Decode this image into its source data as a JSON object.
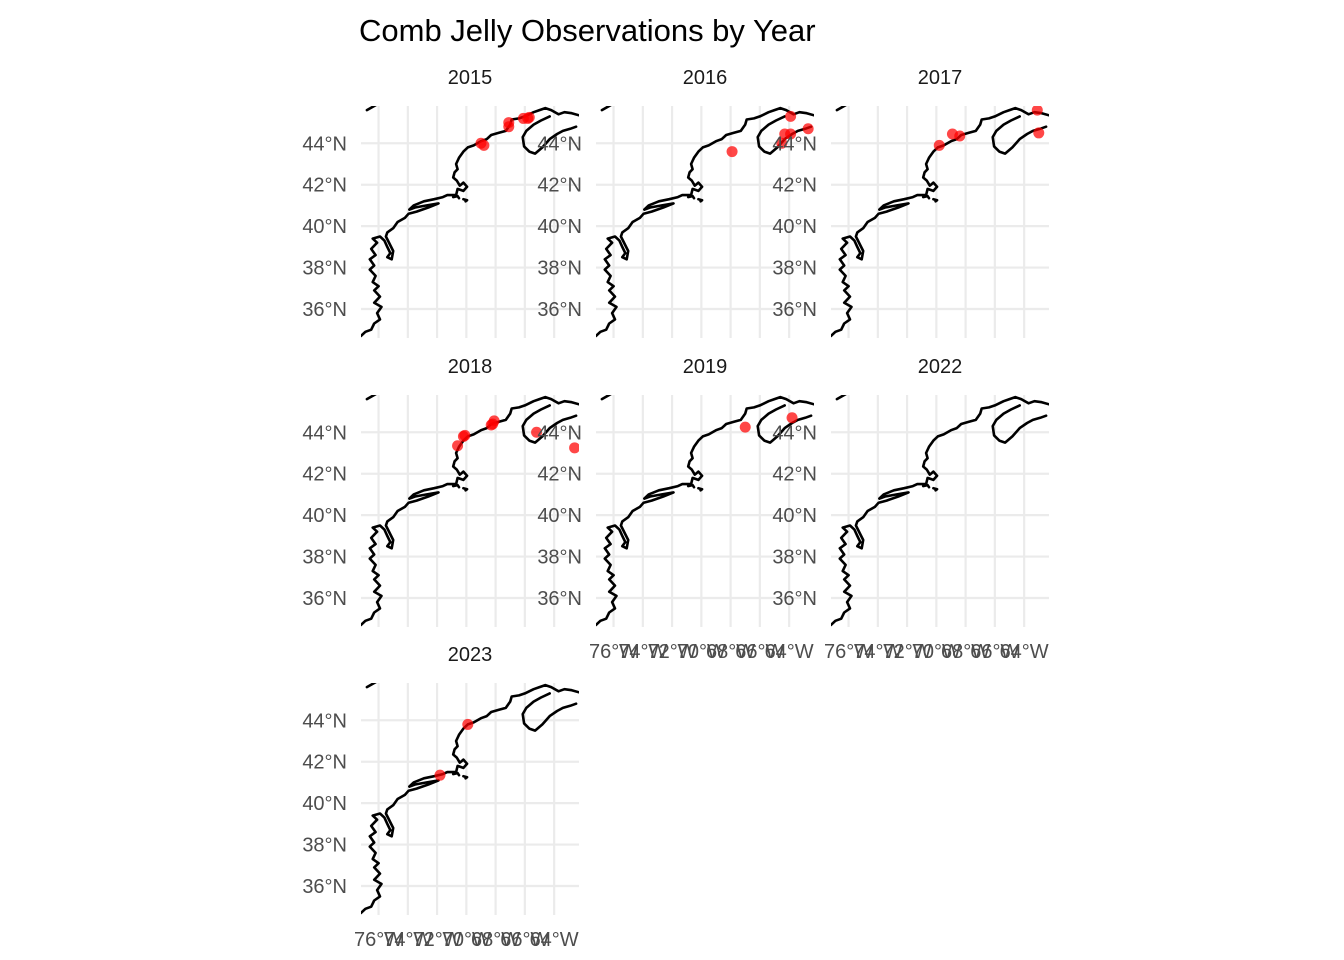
{
  "figure": {
    "title": "Comb Jelly Observations by Year"
  },
  "chart_data": {
    "type": "scatter",
    "title": "Comb Jelly Observations by Year",
    "xlabel": "",
    "ylabel": "",
    "xlim": [
      -77.2,
      -62.3
    ],
    "ylim": [
      34.6,
      45.8
    ],
    "x_ticks": [
      -76,
      -74,
      -72,
      -70,
      -68,
      -66,
      -64
    ],
    "x_tick_labels": [
      "76°W",
      "74°W",
      "72°W",
      "70°W",
      "68°W",
      "66°W",
      "64°W"
    ],
    "y_ticks": [
      36,
      38,
      40,
      42,
      44
    ],
    "y_tick_labels": [
      "36°N",
      "38°N",
      "40°N",
      "42°N",
      "44°N"
    ],
    "grid": true,
    "layout": "facet_wrap, 3 columns",
    "point_color": "#ff0000",
    "coastline_color": "#000000",
    "panels": [
      {
        "year": "2015",
        "points": [
          [
            -69.0,
            44.0
          ],
          [
            -68.8,
            43.9
          ],
          [
            -67.1,
            45.0
          ],
          [
            -67.1,
            44.8
          ],
          [
            -66.1,
            45.2
          ],
          [
            -65.7,
            45.25
          ],
          [
            -65.8,
            45.2
          ]
        ]
      },
      {
        "year": "2016",
        "points": [
          [
            -67.9,
            43.6
          ],
          [
            -64.5,
            44.0
          ],
          [
            -64.3,
            44.45
          ],
          [
            -63.9,
            44.45
          ],
          [
            -63.9,
            45.3
          ],
          [
            -62.7,
            44.7
          ]
        ]
      },
      {
        "year": "2017",
        "points": [
          [
            -69.8,
            43.9
          ],
          [
            -68.9,
            44.45
          ],
          [
            -68.4,
            44.35
          ],
          [
            -63.1,
            45.6
          ],
          [
            -63.0,
            44.5
          ]
        ]
      },
      {
        "year": "2018",
        "points": [
          [
            -70.6,
            43.35
          ],
          [
            -70.2,
            43.8
          ],
          [
            -70.1,
            43.85
          ],
          [
            -68.3,
            44.35
          ],
          [
            -68.1,
            44.55
          ],
          [
            -68.2,
            44.4
          ],
          [
            -65.2,
            44.0
          ],
          [
            -62.6,
            43.25
          ]
        ]
      },
      {
        "year": "2019",
        "points": [
          [
            -67.0,
            44.25
          ],
          [
            -63.8,
            44.7
          ]
        ]
      },
      {
        "year": "2022",
        "points": []
      },
      {
        "year": "2023",
        "points": [
          [
            -69.9,
            43.8
          ],
          [
            -71.8,
            41.35
          ]
        ]
      }
    ]
  }
}
